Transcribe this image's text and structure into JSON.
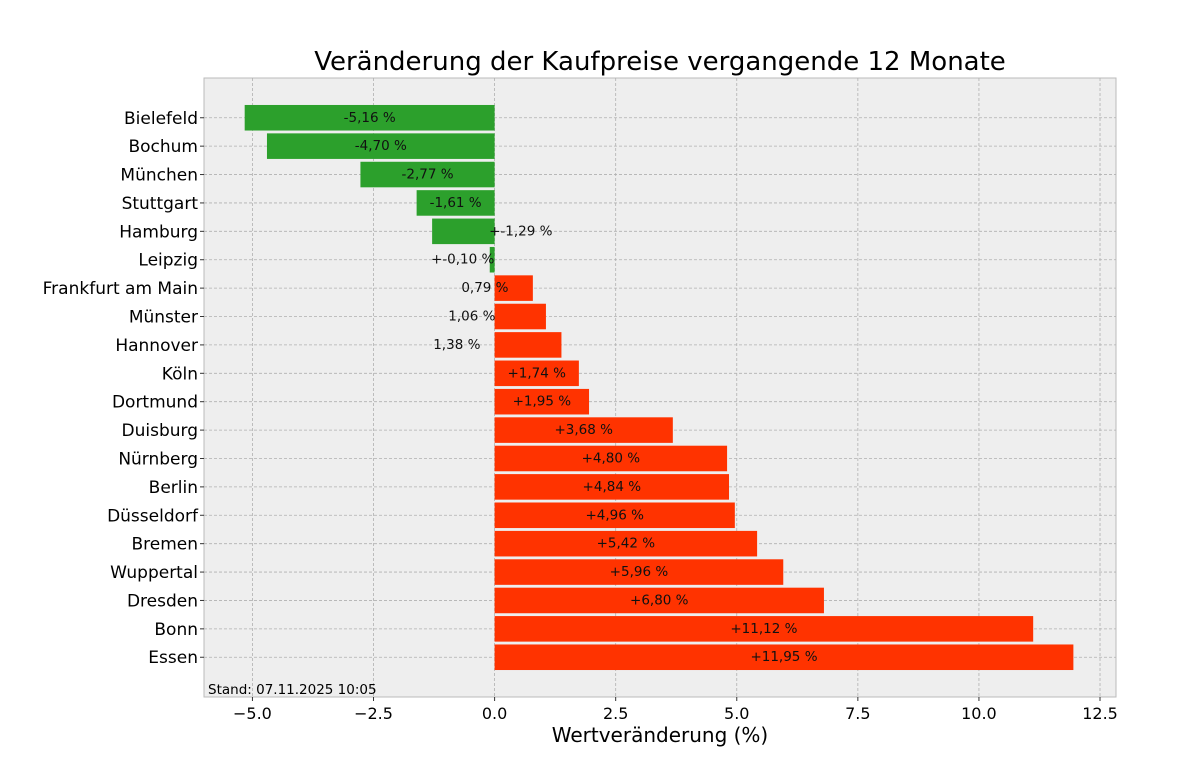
{
  "chart_data": {
    "type": "bar",
    "orientation": "horizontal",
    "title": "Veränderung der Kaufpreise vergangende 12 Monate",
    "xlabel": "Wertveränderung (%)",
    "ylabel": "",
    "xlim": [
      -6.0,
      12.83
    ],
    "xticks": [
      -5.0,
      -2.5,
      0.0,
      2.5,
      5.0,
      7.5,
      10.0,
      12.5
    ],
    "xtick_labels": [
      "−5.0",
      "−2.5",
      "0.0",
      "2.5",
      "5.0",
      "7.5",
      "10.0",
      "12.5"
    ],
    "grid": true,
    "categories": [
      "Bielefeld",
      "Bochum",
      "München",
      "Stuttgart",
      "Hamburg",
      "Leipzig",
      "Frankfurt am Main",
      "Münster",
      "Hannover",
      "Köln",
      "Dortmund",
      "Duisburg",
      "Nürnberg",
      "Berlin",
      "Düsseldorf",
      "Bremen",
      "Wuppertal",
      "Dresden",
      "Bonn",
      "Essen"
    ],
    "values": [
      -5.16,
      -4.7,
      -2.77,
      -1.61,
      -1.29,
      -0.1,
      0.79,
      1.06,
      1.38,
      1.74,
      1.95,
      3.68,
      4.8,
      4.84,
      4.96,
      5.42,
      5.96,
      6.8,
      11.12,
      11.95
    ],
    "data_labels": [
      "-5,16 %",
      "-4,70 %",
      "-2,77 %",
      "-1,61 %",
      "+-1,29 %",
      "+-0,10 %",
      "0,79 %",
      "1,06 %",
      "1,38 %",
      "+1,74 %",
      "+1,95 %",
      "+3,68 %",
      "+4,80 %",
      "+4,84 %",
      "+4,96 %",
      "+5,42 %",
      "+5,96 %",
      "+6,80 %",
      "+11,12 %",
      "+11,95 %"
    ],
    "colors": {
      "negative": "#2ca02c",
      "positive": "#ff3300",
      "plot_background": "#eeeeee"
    },
    "annotation": "Stand: 07.11.2025 10:05"
  }
}
